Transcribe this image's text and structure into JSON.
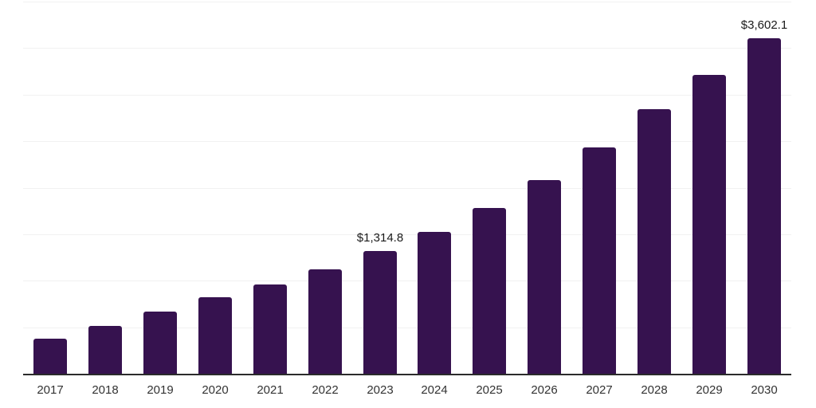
{
  "chart_data": {
    "type": "bar",
    "title": "",
    "xlabel": "",
    "ylabel": "",
    "categories": [
      "2017",
      "2018",
      "2019",
      "2020",
      "2021",
      "2022",
      "2023",
      "2024",
      "2025",
      "2026",
      "2027",
      "2028",
      "2029",
      "2030"
    ],
    "values": [
      375,
      510,
      664,
      822,
      959,
      1118,
      1314.8,
      1527,
      1784,
      2081,
      2430,
      2841,
      3212,
      3602.1
    ],
    "annotations": [
      {
        "category": "2023",
        "label": "$1,314.8"
      },
      {
        "category": "2030",
        "label": "$3,602.1"
      }
    ],
    "ylim": [
      0,
      4000
    ],
    "gridline_step": 500,
    "grid": true,
    "legend": "none",
    "colors": {
      "bar": "#36124F",
      "axis": "#2B2B2B",
      "gridline": "#F1F1F1",
      "tick_label": "#333333",
      "annotation": "#1A1A1A",
      "background": "#FFFFFF"
    }
  }
}
